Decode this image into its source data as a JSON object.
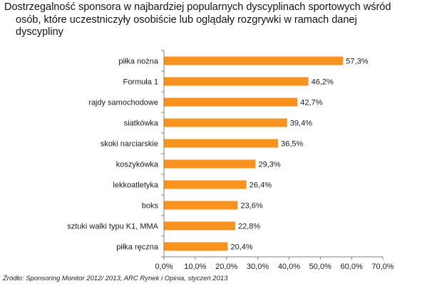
{
  "title_lines": [
    "Dostrzegalność sponsora w najbardziej popularnych dyscyplinach sportowych wśród",
    "osób, które uczestniczyły osobiście lub oglądały rozgrywki w ramach danej",
    "dyscypliny"
  ],
  "source": "Źródło: Sponsoring Monitor 2012/ 2013, ARC Rynek i Opinia, styczeń 2013",
  "colors": {
    "bar": "#f7931e",
    "axis": "#7f7f7f"
  },
  "chart_data": {
    "type": "bar",
    "orientation": "horizontal",
    "categories": [
      "piłka nożna",
      "Formuła 1",
      "rajdy samochodowe",
      "siatkówka",
      "skoki narciarskie",
      "koszykówka",
      "lekkoatletyka",
      "boks",
      "sztuki walki typu K1, MMA",
      "piłka ręczna"
    ],
    "values": [
      57.3,
      46.2,
      42.7,
      39.4,
      36.5,
      29.3,
      26.4,
      23.6,
      22.8,
      20.4
    ],
    "value_labels": [
      "57,3%",
      "46,2%",
      "42,7%",
      "39,4%",
      "36,5%",
      "29,3%",
      "26,4%",
      "23,6%",
      "22,8%",
      "20,4%"
    ],
    "xlim": [
      0,
      70
    ],
    "xticks": [
      "0,0%",
      "10,0%",
      "20,0%",
      "30,0%",
      "40,0%",
      "50,0%",
      "60,0%",
      "70,0%"
    ],
    "grid": false,
    "legend": "none"
  }
}
